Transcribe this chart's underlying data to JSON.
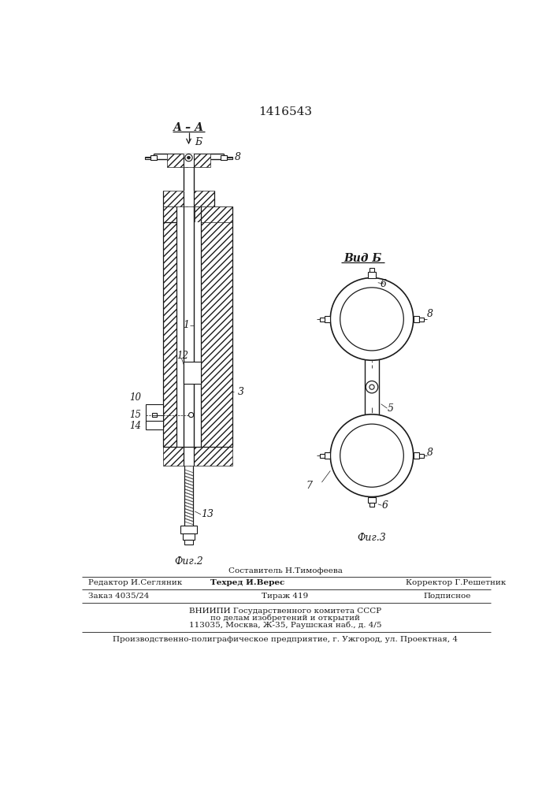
{
  "patent_number": "1416543",
  "bg_color": "#ffffff",
  "line_color": "#1a1a1a",
  "fig_width": 7.07,
  "fig_height": 10.0,
  "label_AA": "А – А",
  "label_B_arrow": "Б",
  "label_vidB": "Вид Б",
  "label_fig2": "Фиг.2",
  "label_fig3": "Фиг.3",
  "n1": "1",
  "n3": "3",
  "n5": "5",
  "n6": "6",
  "n7": "7",
  "n8": "8",
  "n10": "10",
  "n12": "12",
  "n13": "13",
  "n14": "14",
  "n15": "15",
  "footer_composer": "Составитель Н.Тимофеева",
  "footer_editor": "Редактор И.Сегляник",
  "footer_techred": "Техред И.Верес",
  "footer_corrector": "Корректор Г.Решетник",
  "footer_order": "Заказ 4035/24",
  "footer_tirazh": "Тираж 419",
  "footer_podpisnoe": "Подписное",
  "footer_vniippi1": "ВНИИПИ Государственного комитета СССР",
  "footer_vniippi2": "по делам изобретений и открытий",
  "footer_vniippi3": "113035, Москва, Ж-35, Раушская наб., д. 4/5",
  "footer_bottom": "Производственно-полиграфическое предприятие, г. Ужгород, ул. Проектная, 4"
}
